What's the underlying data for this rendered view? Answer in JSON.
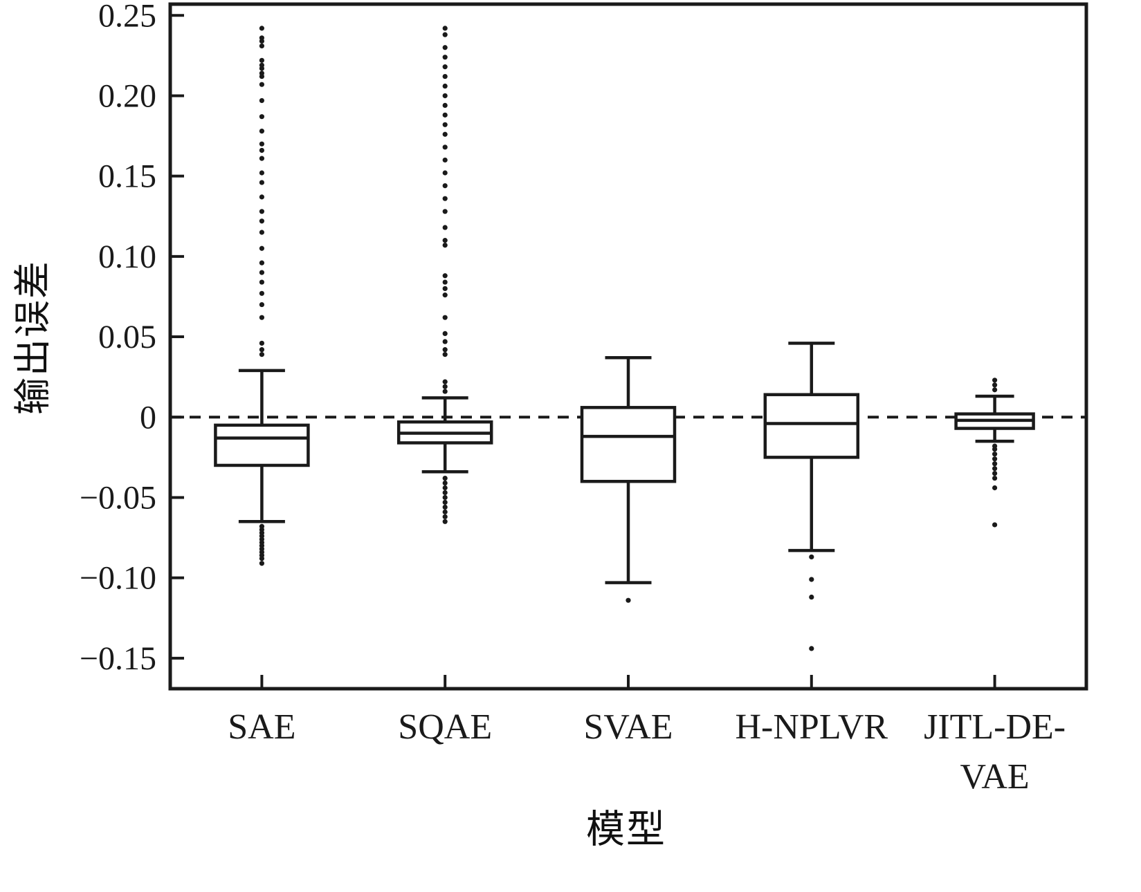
{
  "chart_data": {
    "type": "boxplot",
    "title": "",
    "xlabel": "模型",
    "ylabel": "输出误差",
    "ylim": [
      -0.169,
      0.257
    ],
    "yticks": [
      -0.15,
      -0.1,
      -0.05,
      0,
      0.05,
      0.1,
      0.15,
      0.2,
      0.25
    ],
    "ytick_labels": [
      "−0.15",
      "−0.10",
      "−0.05",
      "0",
      "0.05",
      "0.10",
      "0.15",
      "0.20",
      "0.25"
    ],
    "grid": false,
    "zero_reference_line": {
      "value": 0,
      "style": "dashed"
    },
    "categories": [
      "SAE",
      "SQAE",
      "SVAE",
      "H-NPLVR",
      "JITL-DE-VAE"
    ],
    "category_label_lines": [
      [
        "SAE"
      ],
      [
        "SQAE"
      ],
      [
        "SVAE"
      ],
      [
        "H-NPLVR"
      ],
      [
        "JITL-DE-",
        "VAE"
      ]
    ],
    "boxes": [
      {
        "label": "SAE",
        "whisker_low": -0.065,
        "q1": -0.03,
        "median": -0.013,
        "q3": -0.005,
        "whisker_high": 0.029,
        "outliers": [
          0.242,
          0.236,
          0.234,
          0.231,
          0.222,
          0.219,
          0.217,
          0.214,
          0.212,
          0.207,
          0.197,
          0.187,
          0.178,
          0.17,
          0.166,
          0.161,
          0.152,
          0.146,
          0.137,
          0.128,
          0.122,
          0.115,
          0.105,
          0.096,
          0.09,
          0.084,
          0.077,
          0.07,
          0.062,
          0.046,
          0.042,
          0.039,
          -0.068,
          -0.07,
          -0.072,
          -0.074,
          -0.076,
          -0.078,
          -0.08,
          -0.082,
          -0.084,
          -0.086,
          -0.088,
          -0.091
        ]
      },
      {
        "label": "SQAE",
        "whisker_low": -0.034,
        "q1": -0.016,
        "median": -0.01,
        "q3": -0.003,
        "whisker_high": 0.012,
        "outliers": [
          0.242,
          0.238,
          0.23,
          0.224,
          0.218,
          0.212,
          0.206,
          0.2,
          0.194,
          0.188,
          0.182,
          0.176,
          0.168,
          0.16,
          0.152,
          0.144,
          0.136,
          0.128,
          0.118,
          0.11,
          0.107,
          0.088,
          0.084,
          0.08,
          0.076,
          0.062,
          0.052,
          0.047,
          0.042,
          0.039,
          0.022,
          0.019,
          0.016,
          -0.038,
          -0.041,
          -0.044,
          -0.047,
          -0.05,
          -0.053,
          -0.056,
          -0.059,
          -0.062,
          -0.065
        ]
      },
      {
        "label": "SVAE",
        "whisker_low": -0.103,
        "q1": -0.04,
        "median": -0.012,
        "q3": 0.006,
        "whisker_high": 0.037,
        "outliers": [
          -0.114
        ]
      },
      {
        "label": "H-NPLVR",
        "whisker_low": -0.083,
        "q1": -0.025,
        "median": -0.004,
        "q3": 0.014,
        "whisker_high": 0.046,
        "outliers": [
          -0.087,
          -0.101,
          -0.112,
          -0.144
        ]
      },
      {
        "label": "JITL-DE-VAE",
        "whisker_low": -0.015,
        "q1": -0.007,
        "median": -0.002,
        "q3": 0.002,
        "whisker_high": 0.013,
        "outliers": [
          0.023,
          0.02,
          0.017,
          -0.018,
          -0.02,
          -0.023,
          -0.026,
          -0.029,
          -0.032,
          -0.035,
          -0.038,
          -0.044,
          -0.067
        ]
      }
    ],
    "line_color": "#1a1a1a",
    "box_fill": "#ffffff"
  }
}
